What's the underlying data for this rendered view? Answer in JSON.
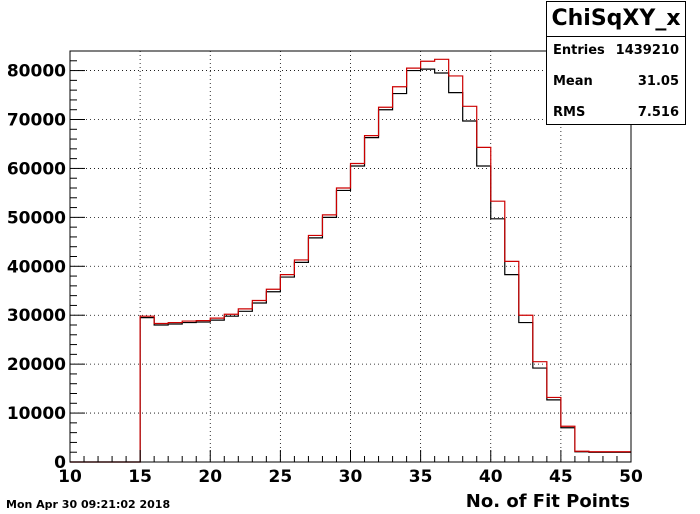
{
  "chart_data": {
    "type": "histogram",
    "title": "ChiSqXY_x",
    "xlabel": "No. of Fit Points",
    "ylabel": "",
    "xlim": [
      10,
      50
    ],
    "ylim": [
      0,
      84000
    ],
    "grid": true,
    "x_ticks": [
      "10",
      "15",
      "20",
      "25",
      "30",
      "35",
      "40",
      "45",
      "50"
    ],
    "y_ticks": [
      "0",
      "10000",
      "20000",
      "30000",
      "40000",
      "50000",
      "60000",
      "70000",
      "80000"
    ],
    "bins": [
      10,
      11,
      12,
      13,
      14,
      15,
      16,
      17,
      18,
      19,
      20,
      21,
      22,
      23,
      24,
      25,
      26,
      27,
      28,
      29,
      30,
      31,
      32,
      33,
      34,
      35,
      36,
      37,
      38,
      39,
      40,
      41,
      42,
      43,
      44,
      45,
      46,
      47,
      48,
      49,
      50
    ],
    "series": [
      {
        "color": "#000000",
        "values": [
          0,
          0,
          0,
          0,
          0,
          29500,
          28000,
          28200,
          28500,
          28600,
          29000,
          29800,
          30800,
          32500,
          34800,
          37800,
          40800,
          45800,
          50000,
          55500,
          60500,
          66300,
          72000,
          75300,
          80000,
          80300,
          79500,
          75500,
          69700,
          60500,
          49700,
          38300,
          28500,
          19200,
          12700,
          7000,
          2100,
          2000,
          2000,
          2000
        ]
      },
      {
        "color": "#cc0000",
        "values": [
          0,
          0,
          0,
          0,
          0,
          29800,
          28300,
          28500,
          28800,
          28900,
          29400,
          30200,
          31300,
          33000,
          35300,
          38300,
          41300,
          46300,
          50500,
          56000,
          61000,
          66700,
          72500,
          76700,
          80500,
          81900,
          82300,
          78900,
          72700,
          64300,
          53300,
          41000,
          30000,
          20500,
          13200,
          7300,
          2200,
          2100,
          2100,
          2100
        ]
      }
    ],
    "stats": {
      "entries_label": "Entries",
      "entries": "1439210",
      "mean_label": "Mean",
      "mean": "31.05",
      "rms_label": "RMS",
      "rms": "7.516"
    }
  },
  "footer": {
    "timestamp": "Mon Apr 30 09:21:02 2018"
  }
}
